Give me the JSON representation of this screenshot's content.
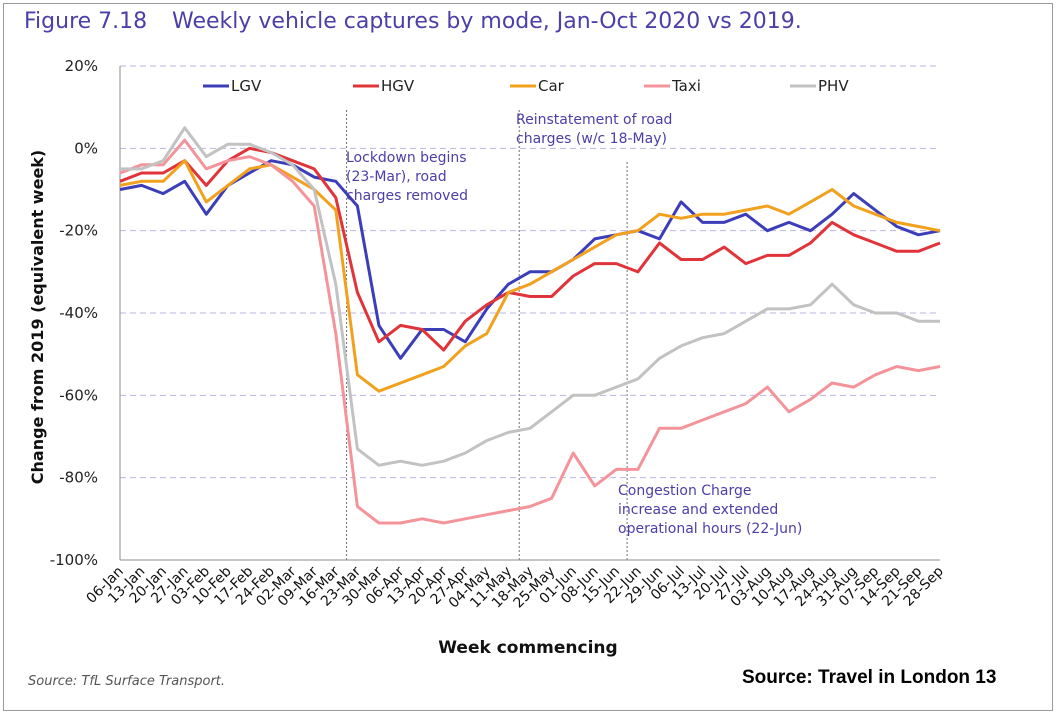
{
  "figure_label": "Figure 7.18",
  "title": "Weekly vehicle captures by mode, Jan-Oct 2020 vs 2019.",
  "source_note": "Source: TfL Surface Transport.",
  "source_banner": "Source: Travel in London 13",
  "annotations": [
    {
      "lines": [
        "Lockdown begins",
        "(23-Mar), road",
        "charges removed"
      ],
      "week": "23-Mar"
    },
    {
      "lines": [
        "Reinstatement of road",
        "charges (w/c 18-May)"
      ],
      "week": "18-May"
    },
    {
      "lines": [
        "Congestion Charge",
        "increase and extended",
        "operational hours (22-Jun)"
      ],
      "week": "22-Jun"
    }
  ],
  "colors": {
    "text_accent": "#4b3fa8",
    "grid": "#b9b6e3",
    "axis": "#8a8a8a",
    "vline": "#6f6f6f"
  },
  "chart_data": {
    "type": "line",
    "xlabel": "Week commencing",
    "ylabel": "Change from 2019 (equivalent week)",
    "ylim": [
      -100,
      20
    ],
    "yticks": [
      -100,
      -80,
      -60,
      -40,
      -20,
      0,
      20
    ],
    "ytick_labels": [
      "-100%",
      "-80%",
      "-60%",
      "-40%",
      "-20%",
      "0%",
      "20%"
    ],
    "grid": "horizontal dashed",
    "legend": "top",
    "categories": [
      "06-Jan",
      "13-Jan",
      "20-Jan",
      "27-Jan",
      "03-Feb",
      "10-Feb",
      "17-Feb",
      "24-Feb",
      "02-Mar",
      "09-Mar",
      "16-Mar",
      "23-Mar",
      "30-Mar",
      "06-Apr",
      "13-Apr",
      "20-Apr",
      "27-Apr",
      "04-May",
      "11-May",
      "18-May",
      "25-May",
      "01-Jun",
      "08-Jun",
      "15-Jun",
      "22-Jun",
      "29-Jun",
      "06-Jul",
      "13-Jul",
      "20-Jul",
      "27-Jul",
      "03-Aug",
      "10-Aug",
      "17-Aug",
      "24-Aug",
      "31-Aug",
      "07-Sep",
      "14-Sep",
      "21-Sep",
      "28-Sep"
    ],
    "series": [
      {
        "name": "LGV",
        "color": "#3c3db8",
        "values": [
          -10,
          -9,
          -11,
          -8,
          -16,
          -9,
          -6,
          -3,
          -4,
          -7,
          -8,
          -14,
          -43,
          -51,
          -44,
          -44,
          -47,
          -39,
          -33,
          -30,
          -30,
          -27,
          -22,
          -21,
          -20,
          -22,
          -13,
          -18,
          -18,
          -16,
          -20,
          -18,
          -20,
          -16,
          -11,
          -15,
          -19,
          -21,
          -20
        ]
      },
      {
        "name": "HGV",
        "color": "#e0343a",
        "values": [
          -8,
          -6,
          -6,
          -3,
          -9,
          -3,
          0,
          -1,
          -3,
          -5,
          -12,
          -35,
          -47,
          -43,
          -44,
          -49,
          -42,
          -38,
          -35,
          -36,
          -36,
          -31,
          -28,
          -28,
          -30,
          -23,
          -27,
          -27,
          -24,
          -28,
          -26,
          -26,
          -23,
          -18,
          -21,
          -23,
          -25,
          -25,
          -23
        ]
      },
      {
        "name": "Car",
        "color": "#f2a11e",
        "values": [
          -9,
          -8,
          -8,
          -3,
          -13,
          -9,
          -5,
          -4,
          -7,
          -10,
          -15,
          -55,
          -59,
          -57,
          -55,
          -53,
          -48,
          -45,
          -35,
          -33,
          -30,
          -27,
          -24,
          -21,
          -20,
          -16,
          -17,
          -16,
          -16,
          -15,
          -14,
          -16,
          -13,
          -10,
          -14,
          -16,
          -18,
          -19,
          -20
        ]
      },
      {
        "name": "Taxi",
        "color": "#f4949a",
        "values": [
          -6,
          -4,
          -4,
          2,
          -5,
          -3,
          -2,
          -4,
          -8,
          -14,
          -45,
          -87,
          -91,
          -91,
          -90,
          -91,
          -90,
          -89,
          -88,
          -87,
          -85,
          -74,
          -82,
          -78,
          -78,
          -68,
          -68,
          -66,
          -64,
          -62,
          -58,
          -64,
          -61,
          -57,
          -58,
          -55,
          -53,
          -54,
          -53
        ]
      },
      {
        "name": "PHV",
        "color": "#c2c2c2",
        "values": [
          -5,
          -5,
          -3,
          5,
          -2,
          1,
          1,
          -1,
          -4,
          -10,
          -33,
          -73,
          -77,
          -76,
          -77,
          -76,
          -74,
          -71,
          -69,
          -68,
          -64,
          -60,
          -60,
          -58,
          -56,
          -51,
          -48,
          -46,
          -45,
          -42,
          -39,
          -39,
          -38,
          -33,
          -38,
          -40,
          -40,
          -42,
          -42
        ]
      }
    ]
  }
}
